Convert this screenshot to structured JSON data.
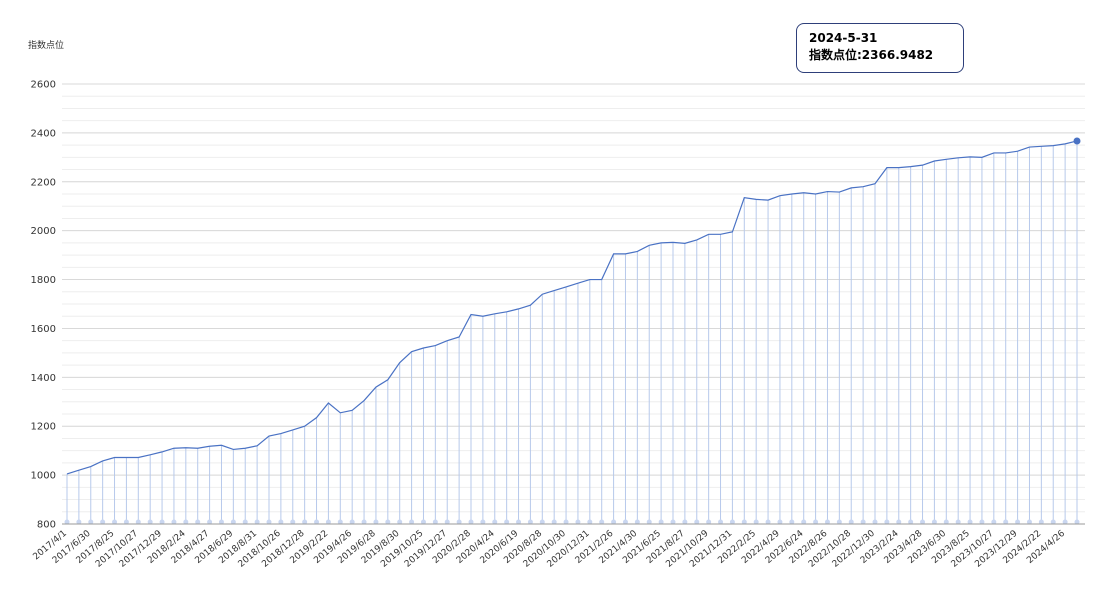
{
  "chart_data": {
    "type": "line",
    "y_axis_label": "指数点位",
    "tooltip": {
      "date": "2024-5-31",
      "text": "指数点位:2366.9482"
    },
    "categories": [
      "2017/4/1",
      null,
      "2017/6/30",
      null,
      "2017/8/25",
      null,
      "2017/10/27",
      null,
      "2017/12/29",
      null,
      "2018/2/24",
      null,
      "2018/4/27",
      null,
      "2018/6/29",
      null,
      "2018/8/31",
      null,
      "2018/10/26",
      null,
      "2018/12/28",
      null,
      "2019/2/22",
      null,
      "2019/4/26",
      null,
      "2019/6/28",
      null,
      "2019/8/30",
      null,
      "2019/10/25",
      null,
      "2019/12/27",
      null,
      "2020/2/28",
      null,
      "2020/4/24",
      null,
      "2020/6/19",
      null,
      "2020/8/28",
      null,
      "2020/10/30",
      null,
      "2020/12/31",
      null,
      "2021/2/26",
      null,
      "2021/4/30",
      null,
      "2021/6/25",
      null,
      "2021/8/27",
      null,
      "2021/10/29",
      null,
      "2021/12/31",
      null,
      "2022/2/25",
      null,
      "2022/4/29",
      null,
      "2022/6/24",
      null,
      "2022/8/26",
      null,
      "2022/10/28",
      null,
      "2022/12/30",
      null,
      "2023/2/24",
      null,
      "2023/4/28",
      null,
      "2023/6/30",
      null,
      "2023/8/25",
      null,
      "2023/10/27",
      null,
      "2023/12/29",
      null,
      "2024/2/22",
      null,
      "2024/4/26",
      null
    ],
    "values": [
      1005,
      1020,
      1035,
      1058,
      1072,
      1072,
      1072,
      1083,
      1095,
      1110,
      1112,
      1110,
      1118,
      1122,
      1105,
      1110,
      1120,
      1160,
      1170,
      1185,
      1200,
      1235,
      1295,
      1255,
      1265,
      1305,
      1360,
      1390,
      1460,
      1505,
      1520,
      1530,
      1550,
      1565,
      1657,
      1650,
      1660,
      1668,
      1680,
      1695,
      1740,
      1755,
      1770,
      1785,
      1800,
      1800,
      1905,
      1905,
      1915,
      1940,
      1950,
      1952,
      1948,
      1962,
      1985,
      1985,
      1995,
      2135,
      2128,
      2125,
      2143,
      2150,
      2155,
      2150,
      2160,
      2158,
      2175,
      2180,
      2192,
      2258,
      2258,
      2262,
      2268,
      2285,
      2292,
      2298,
      2302,
      2300,
      2318,
      2318,
      2325,
      2342,
      2345,
      2348,
      2355,
      2366.9482
    ],
    "color": "#4a72c4",
    "drop_color": "#b7c9eb",
    "ylim": [
      800,
      2600
    ],
    "yticks": [
      800,
      1000,
      1200,
      1400,
      1600,
      1800,
      2000,
      2200,
      2400,
      2600
    ],
    "grid": true
  }
}
